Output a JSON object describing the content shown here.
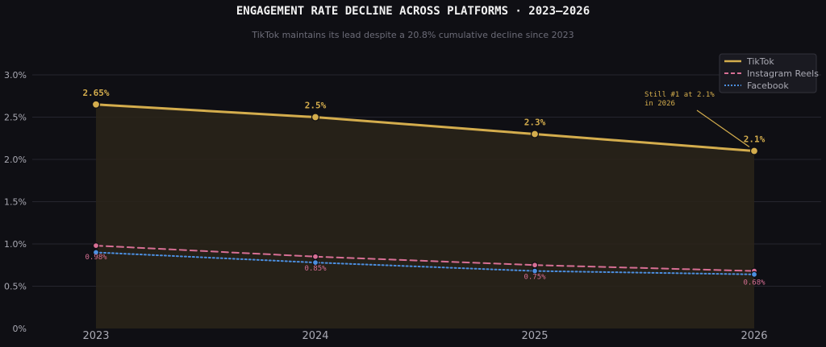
{
  "chart_data": {
    "type": "line",
    "title": "ENGAGEMENT RATE DECLINE ACROSS PLATFORMS  ·  2023–2026",
    "subtitle": "TikTok maintains its lead despite a 20.8% cumulative decline since 2023",
    "xlabel": "",
    "ylabel": "",
    "categories": [
      "2023",
      "2024",
      "2025",
      "2026"
    ],
    "ylim": [
      0,
      3.0
    ],
    "yticks": [
      0,
      0.5,
      1.0,
      1.5,
      2.0,
      2.5,
      3.0
    ],
    "ytick_labels": [
      "0%",
      "0.5%",
      "1.0%",
      "1.5%",
      "2.0%",
      "2.5%",
      "3.0%"
    ],
    "grid": true,
    "legend_position": "top-right",
    "series": [
      {
        "name": "TikTok",
        "values": [
          2.65,
          2.5,
          2.3,
          2.1
        ],
        "labels": [
          "2.65%",
          "2.5%",
          "2.3%",
          "2.1%"
        ],
        "color": "#d4ad4d",
        "style": "solid",
        "filled": true
      },
      {
        "name": "Instagram Reels",
        "values": [
          0.98,
          0.85,
          0.75,
          0.68
        ],
        "labels": [
          "0.98%",
          "0.85%",
          "0.75%",
          "0.68%"
        ],
        "color": "#d76f94",
        "style": "dashed",
        "filled": false
      },
      {
        "name": "Facebook",
        "values": [
          0.9,
          0.78,
          0.68,
          0.64
        ],
        "labels": [],
        "color": "#4c8fe0",
        "style": "dotted",
        "filled": false
      }
    ],
    "annotation": {
      "lines": [
        "Still #1 at 2.1%",
        "in 2026"
      ],
      "series": "TikTok",
      "category": "2026",
      "color": "#d4ad4d"
    },
    "colors": {
      "background": "#0f0f14",
      "grid": "#25252e",
      "axis_text": "#a9a9b3",
      "title": "#f2f2f2",
      "subtitle": "#6c6c78",
      "legend_bg": "#1a1a21",
      "legend_border": "#33333c",
      "area_fill": "#2a2519"
    }
  }
}
